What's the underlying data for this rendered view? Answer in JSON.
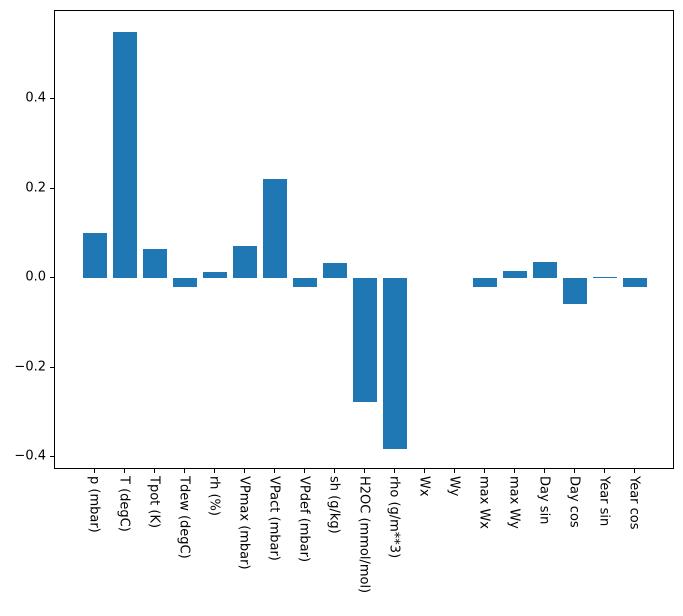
{
  "chart_data": {
    "type": "bar",
    "title": "",
    "xlabel": "",
    "ylabel": "",
    "grid": false,
    "legend_position": "none",
    "bar_color": "#1f77b4",
    "background_color": "#ffffff",
    "spine_color": "#000000",
    "categories": [
      "p (mbar)",
      "T (degC)",
      "Tpot (K)",
      "Tdew (degC)",
      "rh (%)",
      "VPmax (mbar)",
      "VPact (mbar)",
      "VPdef (mbar)",
      "sh (g/kg)",
      "H2OC (mmol/mol)",
      "rho (g/m**3)",
      "Wx",
      "Wy",
      "max Wx",
      "max Wy",
      "Day sin",
      "Day cos",
      "Year sin",
      "Year cos"
    ],
    "values": [
      0.1,
      0.55,
      0.064,
      -0.02,
      0.013,
      0.071,
      0.222,
      -0.02,
      0.033,
      -0.276,
      -0.381,
      0.0,
      0.0,
      -0.02,
      0.016,
      0.035,
      -0.059,
      0.002,
      -0.02
    ],
    "bar_width_units": 0.8,
    "xlim": [
      -1.34,
      19.34
    ],
    "ylim": [
      -0.428,
      0.597
    ],
    "yticks": [
      -0.4,
      -0.2,
      0.0,
      0.2,
      0.4
    ],
    "ytick_labels": [
      "−0.4",
      "−0.2",
      "0.0",
      "0.2",
      "0.4"
    ]
  }
}
